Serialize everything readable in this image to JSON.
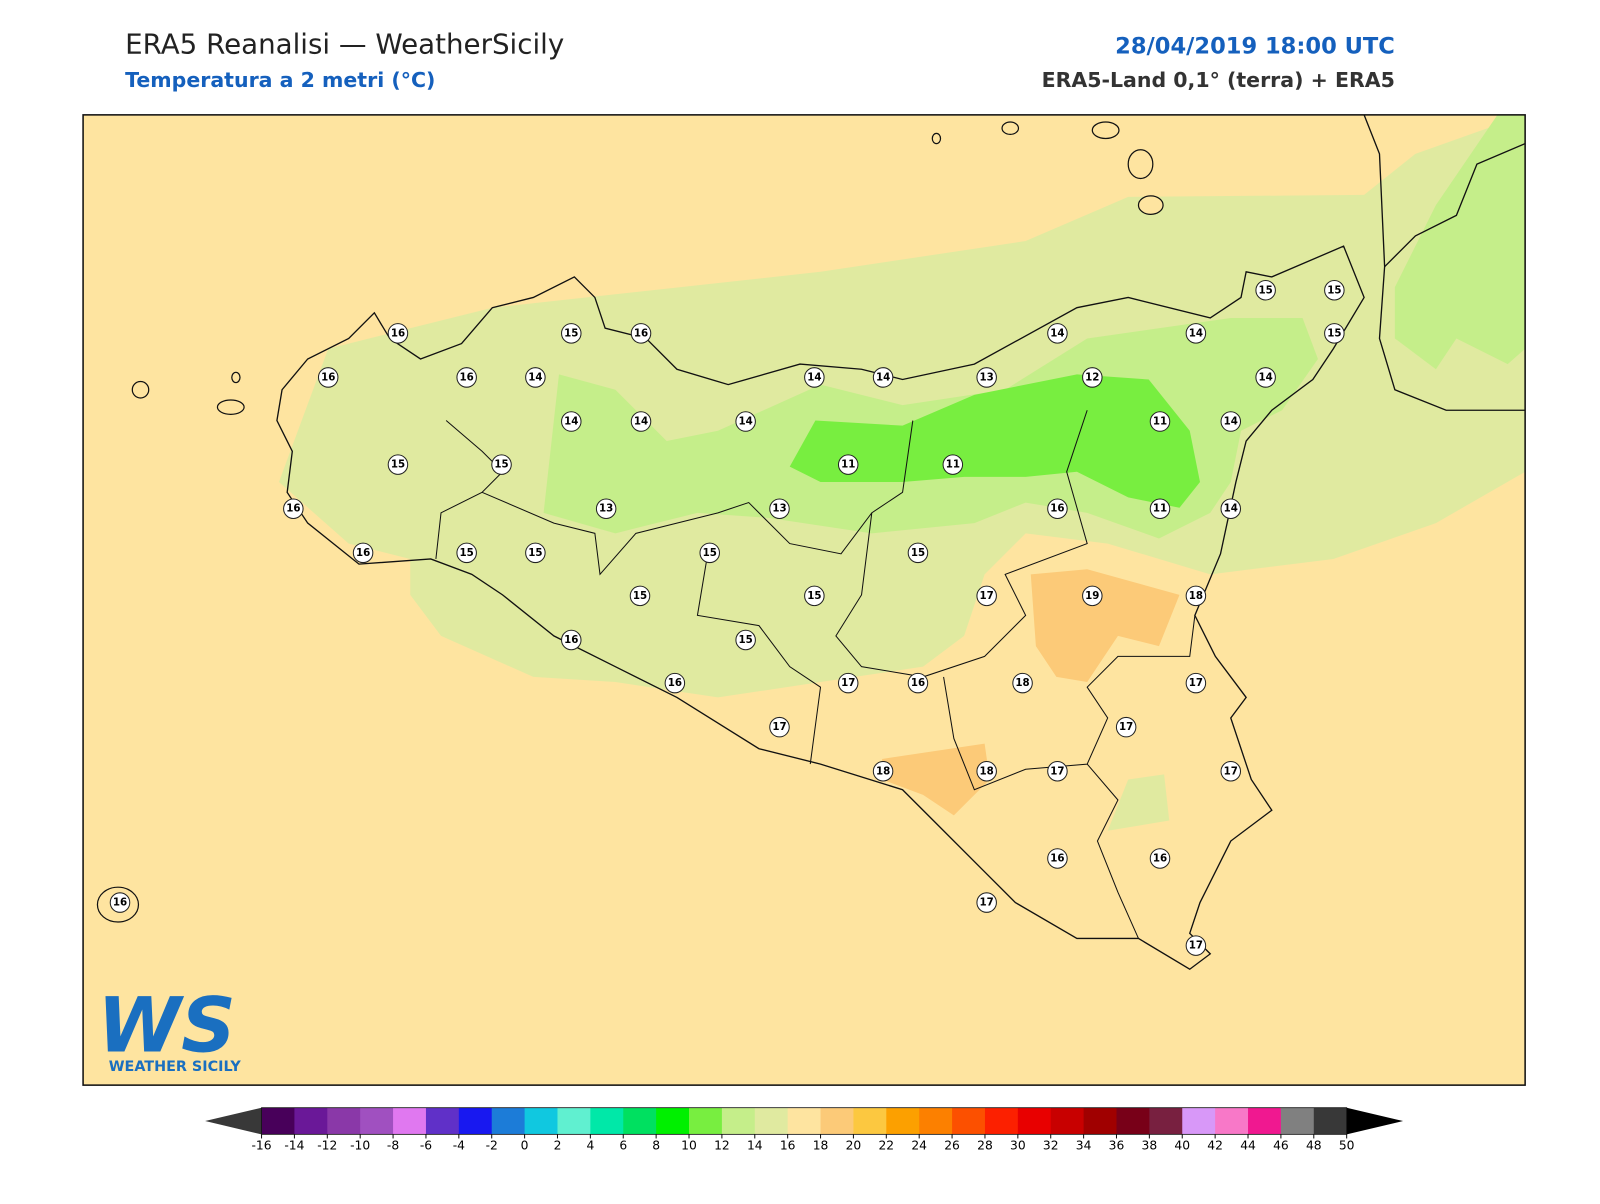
{
  "header": {
    "title": "ERA5 Reanalisi — WeatherSicily",
    "subtitle": "Temperatura a 2 metri (°C)",
    "datetime": "28/04/2019 18:00 UTC",
    "source": "ERA5-Land 0,1° (terra) + ERA5"
  },
  "stations": {
    "values": [
      16,
      16,
      16,
      14,
      15,
      16,
      14,
      14,
      14,
      14,
      14,
      13,
      12,
      14,
      14,
      15,
      15,
      15,
      14,
      11,
      14,
      15,
      15,
      16,
      16,
      15,
      15,
      13,
      13,
      11,
      11,
      16,
      11,
      14,
      15,
      15,
      15,
      15,
      17,
      19,
      18,
      16,
      15,
      16,
      17,
      16,
      18,
      17,
      17,
      17,
      18,
      18,
      17,
      17,
      16,
      16,
      17,
      17,
      16
    ]
  },
  "colorbar": {
    "ticks": [
      -16,
      -14,
      -12,
      -10,
      -8,
      -6,
      -4,
      -2,
      0,
      2,
      4,
      6,
      8,
      10,
      12,
      14,
      16,
      18,
      20,
      22,
      24,
      26,
      28,
      30,
      32,
      34,
      36,
      38,
      40,
      42,
      44,
      46,
      48,
      50
    ],
    "colors": [
      "#48005a",
      "#6a1898",
      "#8a38a8",
      "#a050c0",
      "#e078f0",
      "#6030c8",
      "#1818f0",
      "#1c7cd8",
      "#10c8e0",
      "#60f0d0",
      "#00e8a8",
      "#00e060",
      "#00f000",
      "#78ee40",
      "#c5ee8a",
      "#e0eaa0",
      "#fee4a0",
      "#fcca78",
      "#fcc840",
      "#fca000",
      "#fc8000",
      "#fc5000",
      "#fc2000",
      "#e80000",
      "#c80000",
      "#a00000",
      "#780018",
      "#782040",
      "#d898f8",
      "#f878c8",
      "#f01890",
      "#808080",
      "#383838"
    ]
  },
  "logo": {
    "mark": "WS",
    "text": "WEATHER SICILY"
  }
}
